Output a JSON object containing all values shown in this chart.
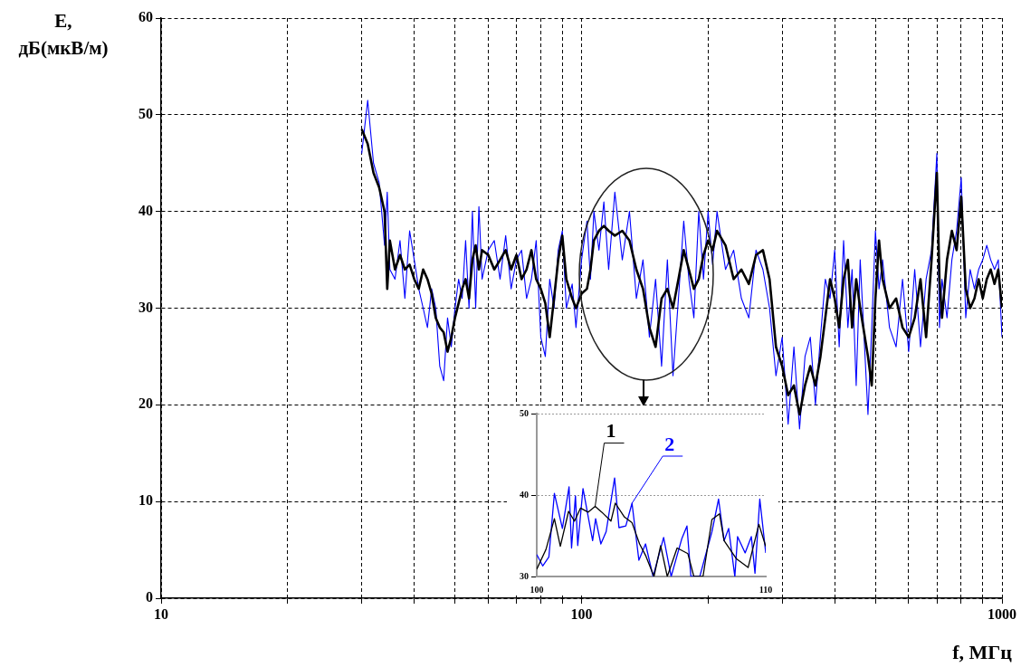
{
  "chart_data": [
    {
      "type": "line",
      "xlabel": "f, МГц",
      "ylabel": "E, дБ(мкВ/м)",
      "log": "x",
      "grid": true,
      "xlim": [
        10,
        1000
      ],
      "xticks": [
        10,
        {
          "value": 20,
          "label": null
        },
        {
          "value": 30,
          "label": null
        },
        {
          "value": 40,
          "label": null
        },
        {
          "value": 50,
          "label": null
        },
        {
          "value": 60,
          "label": null
        },
        {
          "value": 70,
          "label": null
        },
        {
          "value": 80,
          "label": null
        },
        {
          "value": 90,
          "label": null
        },
        100,
        {
          "value": 200,
          "label": null
        },
        {
          "value": 300,
          "label": null
        },
        {
          "value": 400,
          "label": null
        },
        {
          "value": 500,
          "label": null
        },
        {
          "value": 600,
          "label": null
        },
        {
          "value": 700,
          "label": null
        },
        {
          "value": 800,
          "label": null
        },
        {
          "value": 900,
          "label": null
        },
        1000
      ],
      "ylim": [
        0,
        60
      ],
      "yticks": [
        0,
        10,
        20,
        30,
        40,
        50,
        60
      ],
      "x": [
        30,
        31,
        32,
        33,
        34,
        34.5,
        35,
        36,
        37,
        38,
        39,
        40,
        41,
        42,
        43,
        44,
        45,
        46,
        47,
        48,
        49,
        50,
        51,
        52,
        53,
        54,
        55,
        56,
        57,
        58,
        60,
        62,
        64,
        66,
        68,
        70,
        72,
        74,
        76,
        78,
        80,
        82,
        84,
        86,
        88,
        90,
        92,
        95,
        97,
        100,
        103,
        105,
        107,
        110,
        113,
        116,
        120,
        125,
        130,
        135,
        140,
        145,
        150,
        155,
        160,
        165,
        170,
        175,
        180,
        185,
        190,
        195,
        200,
        205,
        210,
        220,
        230,
        240,
        250,
        260,
        270,
        280,
        290,
        300,
        310,
        320,
        330,
        340,
        350,
        360,
        370,
        380,
        390,
        400,
        410,
        420,
        430,
        440,
        450,
        460,
        480,
        490,
        500,
        510,
        520,
        540,
        560,
        580,
        600,
        620,
        640,
        660,
        680,
        700,
        710,
        720,
        740,
        760,
        780,
        800,
        820,
        840,
        860,
        880,
        900,
        920,
        940,
        960,
        980,
        1000
      ],
      "series": [
        {
          "color": "#000000",
          "values": [
            48.5,
            47,
            44,
            42.5,
            40,
            32,
            37,
            34,
            35.5,
            34,
            34.5,
            33,
            32,
            34,
            33,
            31.5,
            29,
            28,
            27.5,
            25.5,
            27,
            29,
            30.5,
            32,
            33,
            31,
            35,
            36.5,
            34,
            36,
            35.5,
            34,
            35,
            36,
            34,
            35.5,
            33,
            34,
            36,
            33,
            32,
            30.5,
            27,
            31,
            35,
            37.5,
            33,
            31,
            30,
            31.5,
            32,
            34,
            37,
            38,
            38.5,
            38,
            37.5,
            38,
            37,
            34,
            32,
            28,
            26,
            31,
            32,
            30,
            33,
            36,
            34,
            32,
            33,
            35.5,
            37,
            36,
            38,
            36.5,
            33,
            34,
            32.5,
            35.5,
            36,
            33,
            26,
            24,
            21,
            22,
            19,
            22,
            24,
            22,
            25,
            29,
            33,
            31,
            28,
            33,
            35,
            28,
            33,
            30,
            25,
            22,
            31,
            37,
            33,
            30,
            31,
            28,
            27,
            29,
            33,
            27,
            35,
            44,
            33,
            29,
            35,
            38,
            36,
            41.5,
            32,
            30,
            31,
            33,
            31,
            33,
            34,
            32.5,
            34,
            30
          ]
        },
        {
          "color": "#0000ff",
          "values": [
            46,
            51.5,
            45,
            43,
            36.5,
            42,
            34,
            33,
            37,
            31,
            38,
            35,
            32,
            30,
            28,
            32,
            30,
            24,
            22.5,
            29,
            26,
            30,
            33,
            31,
            37,
            30,
            40,
            30,
            40.5,
            33,
            36,
            37,
            33,
            37.5,
            32,
            35,
            36,
            31,
            33,
            37,
            27,
            25,
            33,
            30,
            36,
            38,
            30,
            32.5,
            28,
            35,
            39,
            33,
            40,
            36,
            41,
            34,
            42,
            35,
            40,
            31,
            35,
            27,
            33,
            24,
            35,
            23,
            31,
            39,
            33,
            29,
            40,
            33,
            40,
            34.5,
            40,
            34,
            36,
            31,
            29,
            36,
            34,
            30,
            23,
            27,
            18,
            26,
            17.5,
            25,
            27,
            20,
            27,
            33,
            31,
            36,
            26,
            37,
            28,
            34,
            22,
            35,
            19,
            28,
            38,
            32,
            35,
            28,
            26,
            33,
            25.5,
            34,
            26,
            33,
            36,
            46,
            28,
            33,
            29,
            35,
            38,
            43.5,
            29,
            34,
            32,
            34,
            35,
            36.5,
            35,
            34,
            35,
            27
          ]
        }
      ]
    },
    {
      "type": "line",
      "grid": "y",
      "xlim": [
        100,
        110
      ],
      "xticks": [
        100,
        110
      ],
      "ylim": [
        30,
        50
      ],
      "yticks": [
        30,
        40,
        50
      ],
      "series": [
        {
          "name": "1",
          "color": "#000000",
          "x": [
            100,
            100.4,
            100.77,
            101.03,
            101.39,
            101.65,
            101.91,
            102.24,
            102.55,
            102.84,
            103.24,
            103.43,
            103.83,
            104.16,
            104.49,
            104.75,
            105.12,
            105.41,
            105.7,
            106.13,
            106.6,
            106.86,
            107.26,
            107.65,
            107.98,
            108.18,
            108.71,
            109.23,
            109.7,
            110
          ],
          "values": [
            30.9,
            33.3,
            37.1,
            33.7,
            38,
            36.8,
            38.4,
            37.9,
            38.6,
            37.9,
            36.8,
            39,
            37.3,
            36.6,
            34,
            32.6,
            30,
            33.8,
            30,
            33.5,
            32.8,
            30,
            30,
            37,
            37.7,
            34.4,
            32.2,
            31.1,
            36.4,
            33.7
          ]
        },
        {
          "name": "2",
          "color": "#0000ff",
          "x": [
            100,
            100.26,
            100.53,
            100.77,
            101.12,
            101.41,
            101.52,
            101.69,
            101.79,
            102.02,
            102.44,
            102.57,
            102.8,
            103.03,
            103.4,
            103.59,
            103.89,
            104.16,
            104.46,
            104.75,
            105.08,
            105.54,
            105.87,
            106.33,
            106.56,
            106.73,
            107.12,
            107.65,
            107.94,
            108.18,
            108.38,
            108.65,
            108.77,
            109.1,
            109.37,
            109.53,
            109.74,
            110
          ],
          "values": [
            32.7,
            31.3,
            32.4,
            40.2,
            35.9,
            41,
            33.5,
            39.9,
            33.8,
            40.8,
            34.4,
            37.1,
            34,
            35.5,
            42.1,
            36,
            36.2,
            39,
            32,
            34,
            30,
            34.8,
            30,
            34.6,
            36.2,
            30,
            30,
            35.5,
            39.5,
            34.4,
            35.9,
            30,
            34.9,
            32.9,
            34.9,
            30.4,
            39.5,
            32.9
          ]
        }
      ]
    }
  ]
}
